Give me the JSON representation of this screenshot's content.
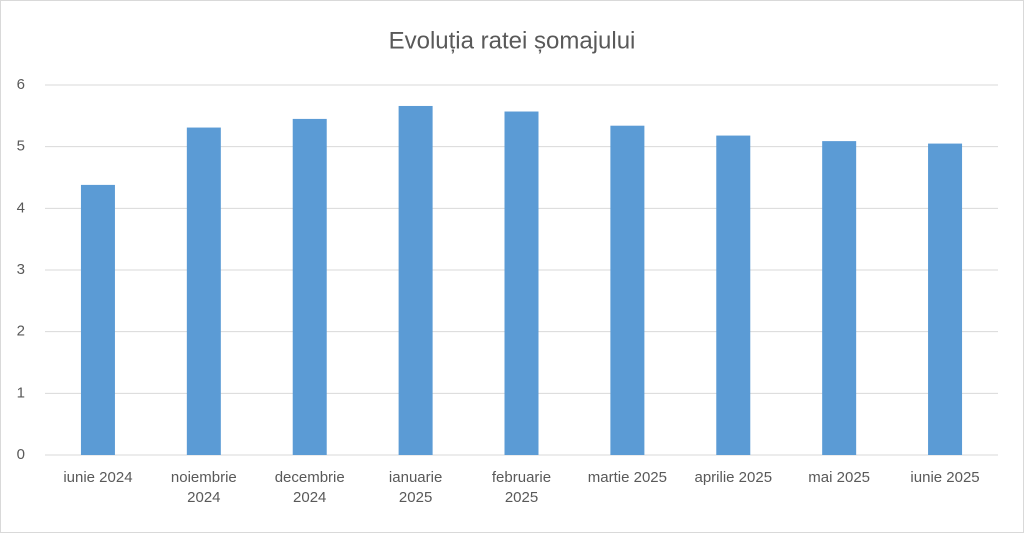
{
  "chart_data": {
    "type": "bar",
    "title": "Evoluția ratei șomajului",
    "categories": [
      "iunie 2024",
      "noiembrie 2024",
      "decembrie 2024",
      "ianuarie 2025",
      "februarie 2025",
      "martie 2025",
      "aprilie 2025",
      "mai 2025",
      "iunie 2025"
    ],
    "values": [
      4.38,
      5.31,
      5.45,
      5.66,
      5.57,
      5.34,
      5.18,
      5.09,
      5.05
    ],
    "color": "#5b9bd5",
    "ylim": [
      0,
      6
    ],
    "yticks": [
      0,
      1,
      2,
      3,
      4,
      5,
      6
    ],
    "grid": true
  }
}
